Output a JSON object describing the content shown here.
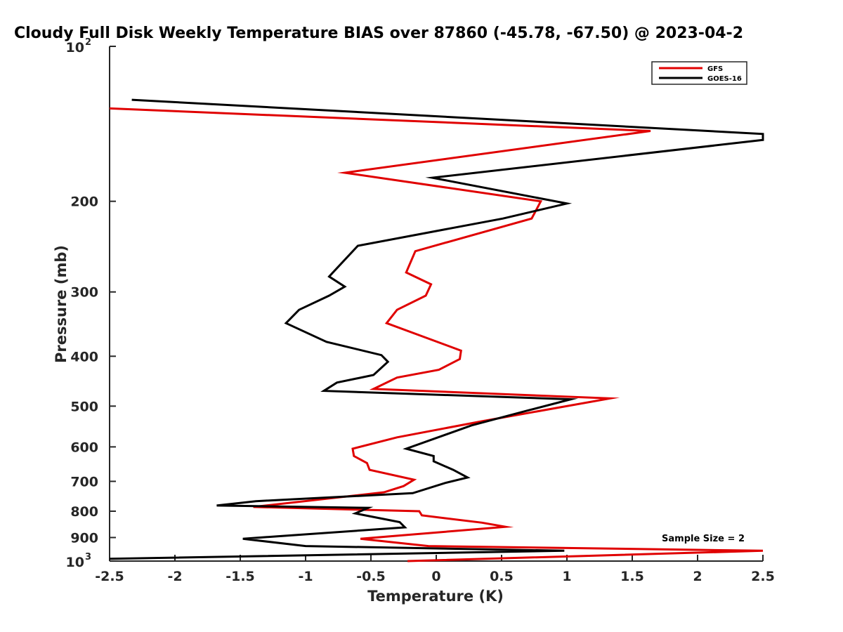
{
  "chart_data": {
    "type": "line",
    "title": "Cloudy Full Disk Weekly Temperature BIAS over 87860 (-45.78, -67.50) @ 2023-04-2",
    "xlabel": "Temperature (K)",
    "ylabel": "Pressure (mb)",
    "xlim": [
      -2.5,
      2.5
    ],
    "ylim": [
      100,
      1000
    ],
    "y_scale": "log",
    "y_reversed": true,
    "x_ticks": [
      "-2.5",
      "-2",
      "-1.5",
      "-1",
      "-0.5",
      "0",
      "0.5",
      "1",
      "1.5",
      "2",
      "2.5"
    ],
    "x_tick_values": [
      -2.5,
      -2,
      -1.5,
      -1,
      -0.5,
      0,
      0.5,
      1,
      1.5,
      2,
      2.5
    ],
    "y_ticks": [
      {
        "value": 100,
        "base": "10",
        "exp": "2"
      },
      {
        "value": 200,
        "label": "200"
      },
      {
        "value": 300,
        "label": "300"
      },
      {
        "value": 400,
        "label": "400"
      },
      {
        "value": 500,
        "label": "500"
      },
      {
        "value": 600,
        "label": "600"
      },
      {
        "value": 700,
        "label": "700"
      },
      {
        "value": 800,
        "label": "800"
      },
      {
        "value": 900,
        "label": "900"
      },
      {
        "value": 1000,
        "base": "10",
        "exp": "3"
      }
    ],
    "legend_position": "top-right",
    "annotation": "Sample Size = 2",
    "series": [
      {
        "name": "GFS",
        "color": "#e00000",
        "points": [
          [
            -2.5,
            132
          ],
          [
            1.64,
            146
          ],
          [
            -0.7,
            176
          ],
          [
            0.8,
            200
          ],
          [
            0.73,
            216
          ],
          [
            -0.16,
            250
          ],
          [
            -0.23,
            275
          ],
          [
            -0.04,
            290
          ],
          [
            -0.08,
            305
          ],
          [
            -0.3,
            325
          ],
          [
            -0.38,
            345
          ],
          [
            0.19,
            390
          ],
          [
            0.18,
            405
          ],
          [
            0.02,
            425
          ],
          [
            -0.3,
            440
          ],
          [
            -0.48,
            463
          ],
          [
            1.33,
            483
          ],
          [
            0.35,
            535
          ],
          [
            -0.3,
            575
          ],
          [
            -0.64,
            605
          ],
          [
            -0.63,
            625
          ],
          [
            -0.53,
            645
          ],
          [
            -0.51,
            665
          ],
          [
            -0.17,
            695
          ],
          [
            -0.25,
            715
          ],
          [
            -0.4,
            735
          ],
          [
            -1.4,
            785
          ],
          [
            -0.13,
            800
          ],
          [
            -0.11,
            815
          ],
          [
            0.35,
            842
          ],
          [
            0.53,
            858
          ],
          [
            -0.58,
            905
          ],
          [
            -0.06,
            935
          ],
          [
            2.5,
            955
          ],
          [
            -0.22,
            1000
          ]
        ]
      },
      {
        "name": "GOES-16",
        "color": "#000000",
        "points": [
          [
            -2.33,
            127
          ],
          [
            2.5,
            148
          ],
          [
            2.5,
            152
          ],
          [
            -0.03,
            180
          ],
          [
            1.0,
            202
          ],
          [
            0.51,
            216
          ],
          [
            -0.6,
            244
          ],
          [
            -0.82,
            280
          ],
          [
            -0.7,
            293
          ],
          [
            -0.82,
            305
          ],
          [
            -1.05,
            325
          ],
          [
            -1.15,
            345
          ],
          [
            -0.84,
            375
          ],
          [
            -0.42,
            398
          ],
          [
            -0.37,
            410
          ],
          [
            -0.48,
            435
          ],
          [
            -0.76,
            450
          ],
          [
            -0.86,
            467
          ],
          [
            1.03,
            485
          ],
          [
            0.7,
            510
          ],
          [
            0.27,
            545
          ],
          [
            -0.23,
            605
          ],
          [
            -0.02,
            625
          ],
          [
            -0.02,
            640
          ],
          [
            0.13,
            665
          ],
          [
            0.24,
            688
          ],
          [
            0.07,
            705
          ],
          [
            -0.18,
            738
          ],
          [
            -1.38,
            765
          ],
          [
            -1.68,
            780
          ],
          [
            -0.52,
            788
          ],
          [
            -0.62,
            808
          ],
          [
            -0.28,
            840
          ],
          [
            -0.24,
            860
          ],
          [
            -1.48,
            905
          ],
          [
            -1.0,
            935
          ],
          [
            0.98,
            955
          ],
          [
            -2.5,
            990
          ]
        ]
      }
    ]
  }
}
